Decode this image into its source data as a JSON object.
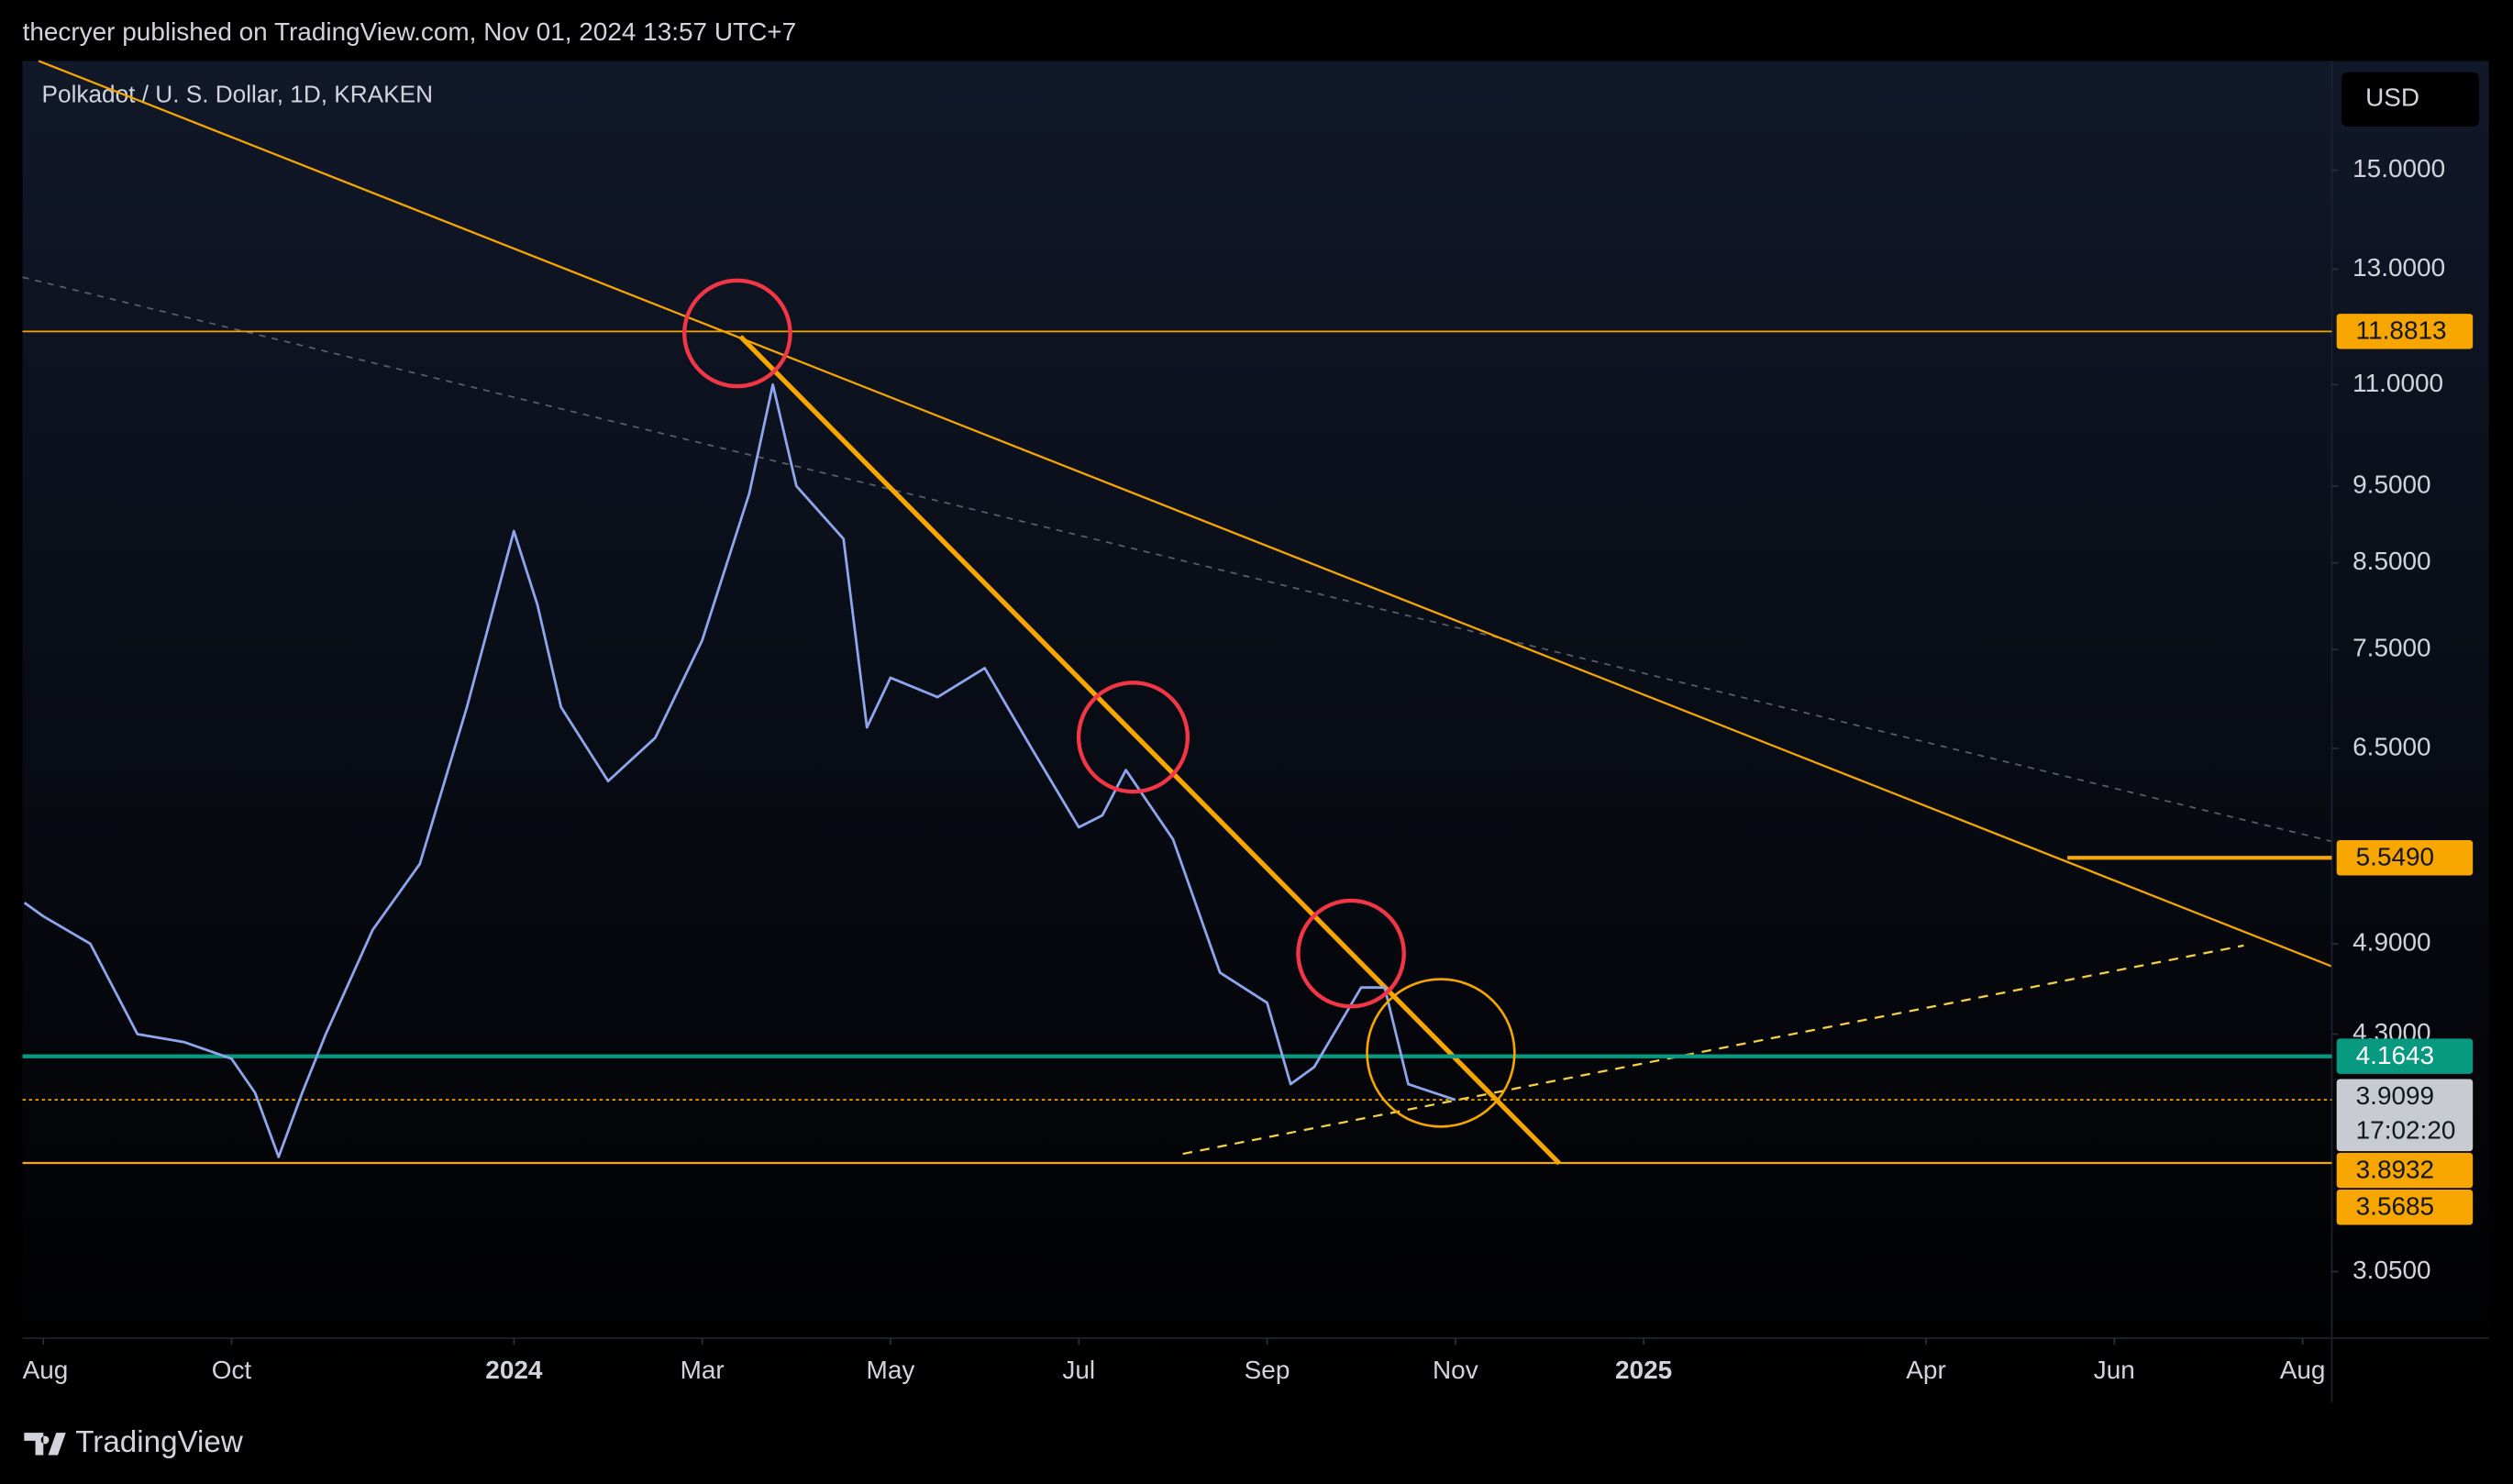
{
  "header": {
    "title": "thecryer published on TradingView.com, Nov 01, 2024 13:57 UTC+7"
  },
  "chart_data": {
    "type": "line",
    "title": "Polkadot / U. S. Dollar, 1D, KRAKEN",
    "currency": "USD",
    "log_scale": true,
    "series": [
      {
        "color": "#8ea6ec",
        "x": [
          -0.2,
          0,
          0.5,
          1,
          1.5,
          2,
          2.25,
          2.5,
          2.75,
          3,
          3.5,
          4,
          4.5,
          5,
          5.25,
          5.5,
          6,
          6.5,
          7,
          7.5,
          7.75,
          8,
          8.5,
          8.75,
          9,
          9.5,
          10,
          10.5,
          11,
          11.25,
          11.5,
          12,
          12.5,
          13,
          13.25,
          13.5,
          14,
          14.25,
          14.5,
          15
        ],
        "values": [
          5.2,
          5.1,
          4.9,
          4.3,
          4.25,
          4.15,
          3.95,
          3.6,
          3.95,
          4.3,
          5.0,
          5.5,
          6.9,
          8.9,
          8.0,
          6.9,
          6.2,
          6.6,
          7.6,
          9.4,
          11.0,
          9.5,
          8.8,
          6.7,
          7.2,
          7.0,
          7.3,
          6.5,
          5.8,
          5.9,
          6.3,
          5.7,
          4.7,
          4.5,
          4.0,
          4.1,
          4.6,
          4.6,
          4.0,
          3.91
        ]
      }
    ],
    "xlim": [
      -0.22,
      24.31
    ],
    "xticks": [
      {
        "value": 0,
        "label": "Aug"
      },
      {
        "value": 2,
        "label": "Oct"
      },
      {
        "value": 5,
        "label": "2024"
      },
      {
        "value": 7,
        "label": "Mar"
      },
      {
        "value": 9,
        "label": "May"
      },
      {
        "value": 11,
        "label": "Jul"
      },
      {
        "value": 13,
        "label": "Sep"
      },
      {
        "value": 15,
        "label": "Nov"
      },
      {
        "value": 17,
        "label": "2025"
      },
      {
        "value": 20,
        "label": "Apr"
      },
      {
        "value": 22,
        "label": "Jun"
      },
      {
        "value": 24,
        "label": "Aug"
      }
    ],
    "ylim": [
      2.77,
      17.57
    ],
    "yticks": [
      {
        "value": 15,
        "label": "15.0000"
      },
      {
        "value": 13,
        "label": "13.0000"
      },
      {
        "value": 11,
        "label": "11.0000"
      },
      {
        "value": 9.5,
        "label": "9.5000"
      },
      {
        "value": 8.5,
        "label": "8.5000"
      },
      {
        "value": 7.5,
        "label": "7.5000"
      },
      {
        "value": 6.5,
        "label": "6.5000"
      },
      {
        "value": 4.9,
        "label": "4.9000"
      },
      {
        "value": 4.3,
        "label": "4.3000"
      },
      {
        "value": 3.05,
        "label": "3.0500"
      }
    ],
    "price_labels": [
      {
        "value": 11.8813,
        "label": "11.8813",
        "color": "#f7a600"
      },
      {
        "value": 5.549,
        "label": "5.5490",
        "color": "#f7a600"
      },
      {
        "value": 4.1643,
        "label": "4.1643",
        "color": "#089981"
      },
      {
        "value": 3.9099,
        "label": "3.9099",
        "color": "#c8cbd2"
      },
      {
        "value": 3.8932,
        "label": "3.8932",
        "color": "#f7a600"
      },
      {
        "value": 3.5685,
        "label": "3.5685",
        "color": "#f7a600"
      }
    ],
    "countdown": "17:02:20"
  },
  "footer": {
    "brand": "TradingView"
  }
}
